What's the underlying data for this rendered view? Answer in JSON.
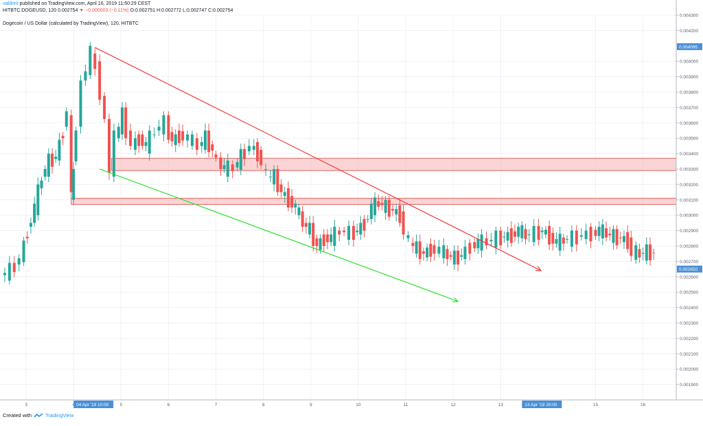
{
  "header": {
    "publisher": "valdrint",
    "published_text": " published on TradingView.com, April 16, 2019 11:50:29 CEST",
    "ticker": "HITBTC:DOGEUSD, 120",
    "last": "0.002754",
    "change_arrow": "▼",
    "change": "−0.000003 (−0.11%)",
    "o_label": "O:",
    "o_value": "0.002751",
    "h_label": "H:",
    "h_value": "0.002772",
    "l_label": "L:",
    "l_value": "0.002747",
    "c_label": "C:",
    "c_value": "0.002754"
  },
  "footer": {
    "created_with": "Created with",
    "brand": "TradingView"
  },
  "colors": {
    "up": "#26a69a",
    "down": "#ef5350",
    "resistance_line": "#ef3b3b",
    "support_line": "#33e033",
    "zone_fill": "#f7b3b3",
    "zone_stroke": "#e06666",
    "axis_label_bg": "#4a8fd6"
  },
  "chart_data": {
    "type": "candlestick",
    "title": "Dogecoin / US Dollar (calculated by TradingView), 120, HITBTC",
    "interval": "120",
    "ylim": [
      0.0018,
      0.0043
    ],
    "y_ticks": [
      "0.001900",
      "0.002000",
      "0.002100",
      "0.002200",
      "0.002300",
      "0.002400",
      "0.002500",
      "0.002600",
      "0.002700",
      "0.002800",
      "0.002900",
      "0.003000",
      "0.003100",
      "0.003200",
      "0.003300",
      "0.003400",
      "0.003500",
      "0.003600",
      "0.003700",
      "0.003800",
      "0.003900",
      "0.004000",
      "0.004200",
      "0.004300"
    ],
    "price_labels": [
      {
        "text": "0.004095",
        "value": 0.004095
      },
      {
        "text": "0.002650",
        "value": 0.00265
      }
    ],
    "x_ticks": [
      {
        "label": "3",
        "day": 3
      },
      {
        "label": "4",
        "day": 4
      },
      {
        "label": "5",
        "day": 5
      },
      {
        "label": "6",
        "day": 6
      },
      {
        "label": "7",
        "day": 7
      },
      {
        "label": "8",
        "day": 8
      },
      {
        "label": "9",
        "day": 9
      },
      {
        "label": "10",
        "day": 10
      },
      {
        "label": "11",
        "day": 11
      },
      {
        "label": "12",
        "day": 12
      },
      {
        "label": "13",
        "day": 13
      },
      {
        "label": "15",
        "day": 15
      },
      {
        "label": "16",
        "day": 16
      }
    ],
    "time_labels": [
      {
        "text": "04 Apr '19   10:00",
        "day": 4.0
      },
      {
        "text": "13 Apr '19   20:00",
        "day": 13.45
      }
    ],
    "x_range": [
      2.45,
      16.7
    ],
    "close_series_days": [
      [
        2.55,
        0.00261
      ],
      [
        2.75,
        0.00264
      ],
      [
        2.95,
        0.00272
      ],
      [
        3.1,
        0.0029
      ],
      [
        3.25,
        0.00305
      ],
      [
        3.4,
        0.00325
      ],
      [
        3.55,
        0.00335
      ],
      [
        3.7,
        0.00338
      ],
      [
        3.85,
        0.00355
      ],
      [
        3.95,
        0.0037
      ],
      [
        4.0,
        0.0031
      ],
      [
        4.05,
        0.0033
      ],
      [
        4.15,
        0.0036
      ],
      [
        4.25,
        0.00385
      ],
      [
        4.35,
        0.00396
      ],
      [
        4.45,
        0.00405
      ],
      [
        4.55,
        0.00395
      ],
      [
        4.65,
        0.0038
      ],
      [
        4.75,
        0.0036
      ],
      [
        4.85,
        0.0033
      ],
      [
        4.95,
        0.0035
      ],
      [
        5.1,
        0.00365
      ],
      [
        5.3,
        0.00345
      ],
      [
        5.45,
        0.0035
      ],
      [
        5.6,
        0.00345
      ],
      [
        5.8,
        0.00355
      ],
      [
        6.0,
        0.0036
      ],
      [
        6.15,
        0.00348
      ],
      [
        6.3,
        0.00352
      ],
      [
        6.5,
        0.0035
      ],
      [
        6.7,
        0.00345
      ],
      [
        6.85,
        0.0035
      ],
      [
        7.0,
        0.00342
      ],
      [
        7.1,
        0.00335
      ],
      [
        7.25,
        0.0033
      ],
      [
        7.45,
        0.00331
      ],
      [
        7.6,
        0.00338
      ],
      [
        7.8,
        0.00345
      ],
      [
        7.95,
        0.0034
      ],
      [
        8.05,
        0.00335
      ],
      [
        8.15,
        0.00325
      ],
      [
        8.3,
        0.00325
      ],
      [
        8.45,
        0.00315
      ],
      [
        8.6,
        0.0031
      ],
      [
        8.75,
        0.00305
      ],
      [
        8.9,
        0.00295
      ],
      [
        9.05,
        0.0029
      ],
      [
        9.2,
        0.0028
      ],
      [
        9.35,
        0.00285
      ],
      [
        9.5,
        0.00285
      ],
      [
        9.7,
        0.0029
      ],
      [
        9.9,
        0.00288
      ],
      [
        10.05,
        0.0029
      ],
      [
        10.2,
        0.00295
      ],
      [
        10.35,
        0.00305
      ],
      [
        10.5,
        0.00308
      ],
      [
        10.65,
        0.00305
      ],
      [
        10.8,
        0.00303
      ],
      [
        10.95,
        0.003
      ],
      [
        11.05,
        0.0029
      ],
      [
        11.15,
        0.00282
      ],
      [
        11.3,
        0.00278
      ],
      [
        11.45,
        0.00275
      ],
      [
        11.6,
        0.00278
      ],
      [
        11.8,
        0.00277
      ],
      [
        11.95,
        0.00274
      ],
      [
        12.1,
        0.00272
      ],
      [
        12.25,
        0.00274
      ],
      [
        12.45,
        0.0028
      ],
      [
        12.6,
        0.00282
      ],
      [
        12.8,
        0.00283
      ],
      [
        13.0,
        0.00285
      ],
      [
        13.15,
        0.00286
      ],
      [
        13.3,
        0.00287
      ],
      [
        13.45,
        0.0029
      ],
      [
        13.6,
        0.00287
      ],
      [
        13.8,
        0.00288
      ],
      [
        13.95,
        0.0029
      ],
      [
        14.1,
        0.00286
      ],
      [
        14.25,
        0.00282
      ],
      [
        14.4,
        0.00284
      ],
      [
        14.6,
        0.00285
      ],
      [
        14.8,
        0.00287
      ],
      [
        15.0,
        0.00288
      ],
      [
        15.15,
        0.0029
      ],
      [
        15.3,
        0.00288
      ],
      [
        15.45,
        0.00286
      ],
      [
        15.6,
        0.00285
      ],
      [
        15.75,
        0.00283
      ],
      [
        15.85,
        0.00276
      ],
      [
        16.0,
        0.00275
      ],
      [
        16.15,
        0.00276
      ],
      [
        16.3,
        0.002754
      ]
    ],
    "annotations": {
      "resistance_trendline": {
        "from": [
          4.45,
          0.00409
        ],
        "to": [
          13.85,
          0.00264
        ]
      },
      "support_trendline": {
        "from": [
          4.55,
          0.0033
        ],
        "to": [
          12.1,
          0.00244
        ]
      },
      "zones": [
        {
          "from_day": 4.8,
          "to_day": 16.7,
          "low": 0.00329,
          "high": 0.00337
        },
        {
          "from_day": 3.95,
          "to_day": 16.7,
          "low": 0.00307,
          "high": 0.00311
        }
      ]
    },
    "grid": true,
    "legend": "none"
  }
}
